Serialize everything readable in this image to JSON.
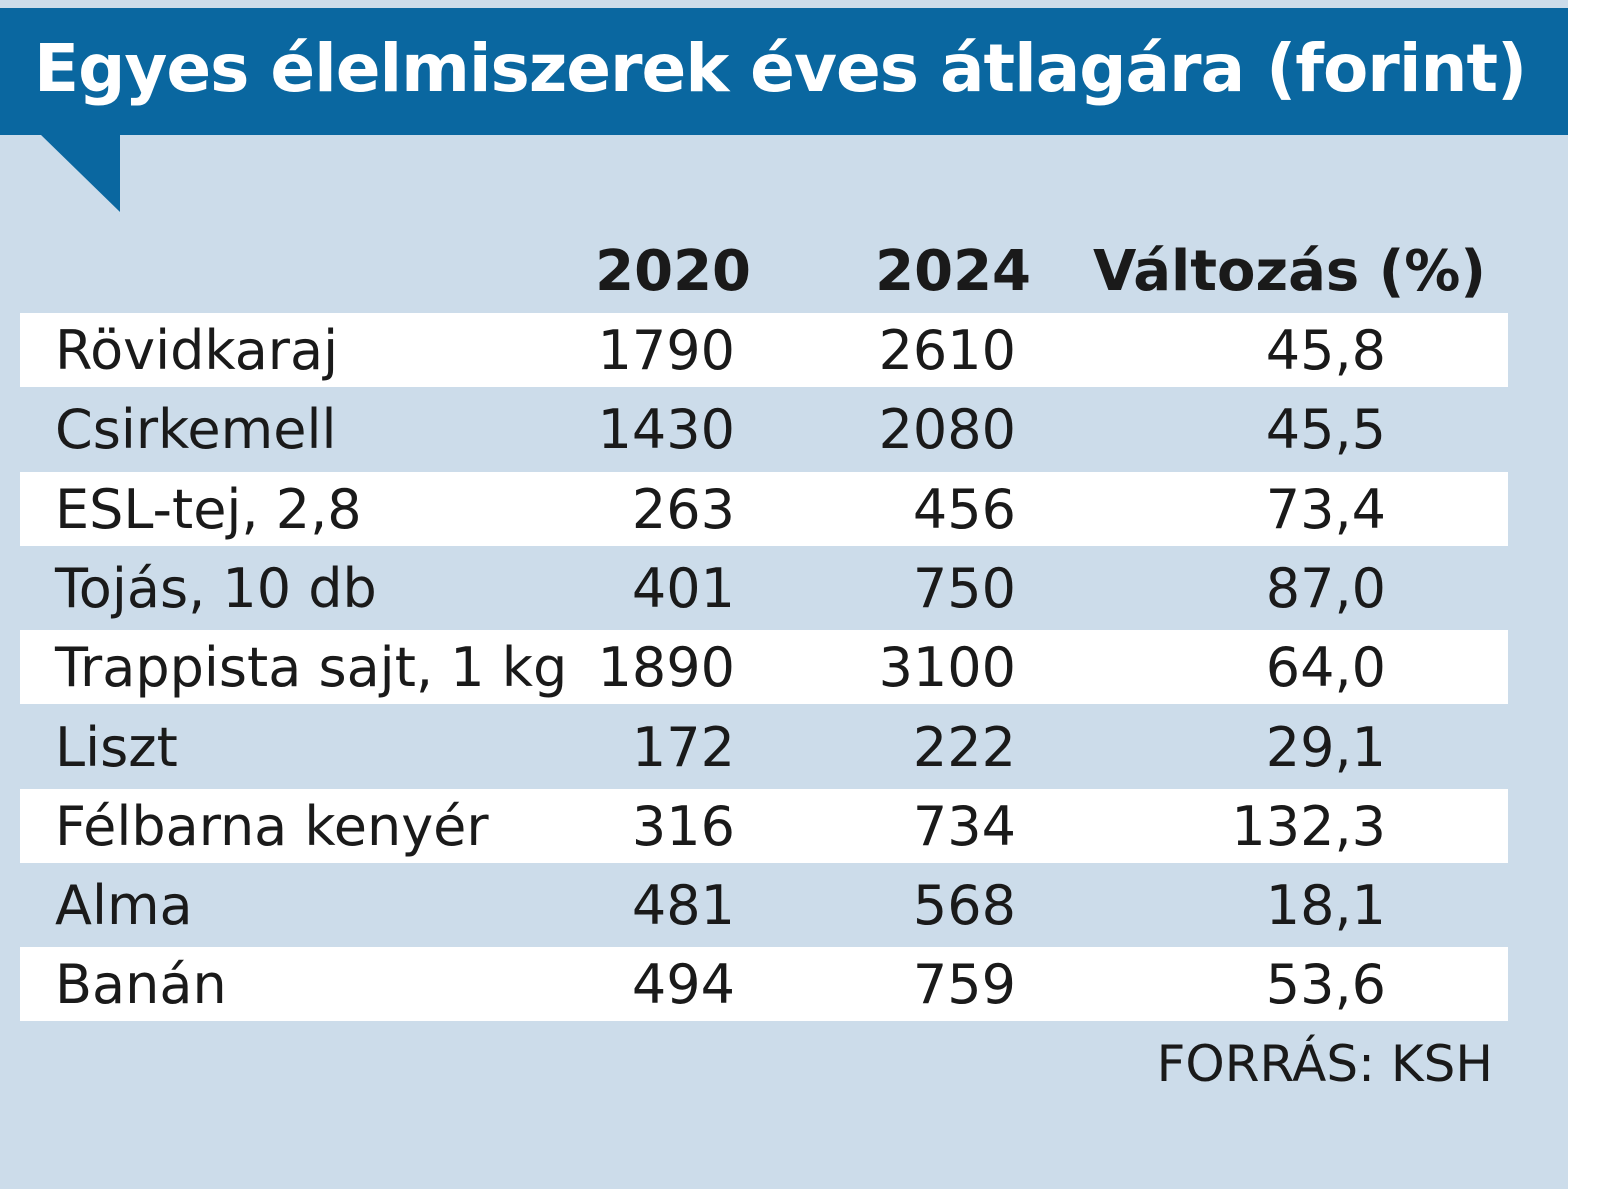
{
  "header": {
    "title": "Egyes élelmiszerek éves átlagára (forint)"
  },
  "table": {
    "columns": [
      "2020",
      "2024",
      "Változás (%)"
    ],
    "rows": [
      [
        "Rövidkaraj",
        1790,
        2610,
        "45,8"
      ],
      [
        "Csirkemell",
        1430,
        2080,
        "45,5"
      ],
      [
        "ESL-tej, 2,8",
        263,
        456,
        "73,4"
      ],
      [
        "Tojás, 10 db",
        401,
        750,
        "87,0"
      ],
      [
        "Trappista sajt, 1 kg",
        1890,
        3100,
        "64,0"
      ],
      [
        "Liszt",
        172,
        222,
        "29,1"
      ],
      [
        "Félbarna kenyér",
        316,
        734,
        "132,3"
      ],
      [
        "Alma",
        481,
        568,
        "18,1"
      ],
      [
        "Banán",
        494,
        759,
        "53,6"
      ]
    ]
  },
  "source": "FORRÁS: KSH"
}
